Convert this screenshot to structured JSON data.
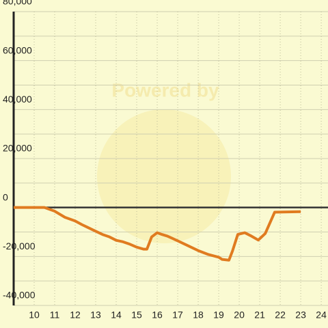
{
  "chart_data": {
    "type": "line",
    "watermark": "Powered by",
    "x": [
      9,
      10.5,
      11,
      11.5,
      12,
      12.33,
      12.83,
      13.33,
      13.67,
      14,
      14.33,
      14.67,
      15,
      15.33,
      15.5,
      15.73,
      16,
      16.23,
      16.5,
      17,
      17.5,
      18,
      18.5,
      19,
      19.17,
      19.5,
      19.67,
      19.93,
      20.27,
      20.6,
      20.93,
      21.27,
      21.73,
      23
    ],
    "series": [
      {
        "color": "#e07b20",
        "values": [
          0,
          0,
          -1500,
          -4000,
          -5500,
          -7000,
          -9000,
          -11000,
          -12000,
          -13400,
          -14000,
          -15000,
          -16200,
          -17000,
          -17000,
          -12000,
          -10300,
          -11000,
          -11700,
          -13600,
          -15600,
          -17600,
          -19200,
          -20300,
          -21200,
          -21500,
          -17800,
          -11000,
          -10300,
          -11700,
          -13300,
          -10600,
          -1900,
          -1700
        ]
      }
    ],
    "xlim": [
      9,
      24.33
    ],
    "xticks": [
      10,
      11,
      12,
      13,
      14,
      15,
      16,
      17,
      18,
      19,
      20,
      21,
      22,
      23,
      24
    ],
    "ylim": [
      -40000,
      80000
    ],
    "yticks": [
      {
        "value": -40000,
        "label": "-40,000"
      },
      {
        "value": -20000,
        "label": "-20,000"
      },
      0,
      {
        "value": 20000,
        "label": "20,000"
      },
      {
        "value": 40000,
        "label": "40,000"
      },
      {
        "value": 60000,
        "label": "60,000"
      },
      {
        "value": 80000,
        "label": "80,000"
      }
    ],
    "yminor": [
      -30000,
      -10000,
      10000,
      30000,
      50000,
      70000
    ],
    "grid": true
  }
}
